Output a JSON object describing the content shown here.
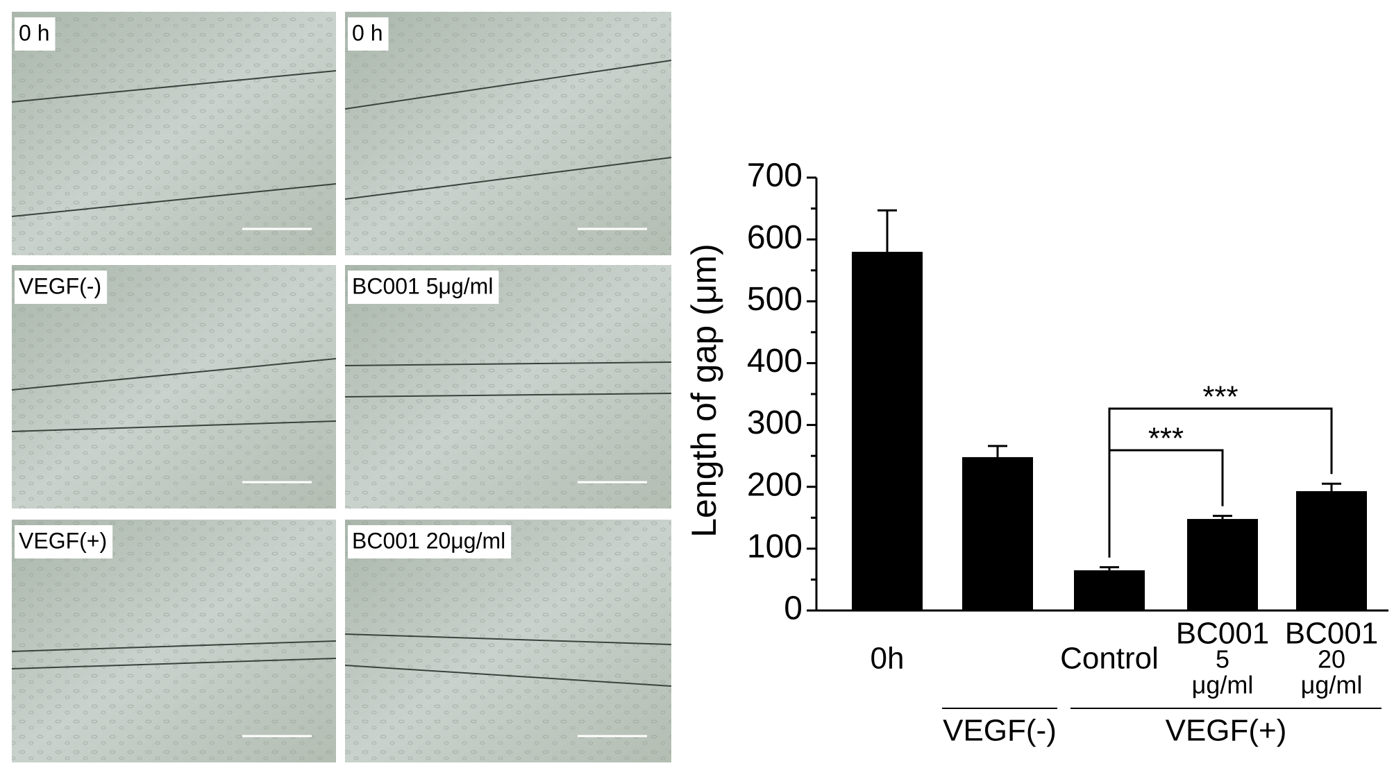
{
  "panels": [
    {
      "label": "0 h"
    },
    {
      "label": "0 h"
    },
    {
      "label": "VEGF(-)"
    },
    {
      "label": "BC001 5μg/ml"
    },
    {
      "label": "VEGF(+)"
    },
    {
      "label": "BC001 20μg/ml"
    }
  ],
  "chart_data": {
    "type": "bar",
    "y_label": "Length of gap (μm)",
    "categories": [
      [
        "0h"
      ],
      null,
      [
        "Control"
      ],
      [
        "BC001",
        "5",
        "μg/ml"
      ],
      [
        "BC001",
        "20",
        "μg/ml"
      ]
    ],
    "values": [
      580,
      248,
      65,
      148,
      193
    ],
    "errors": [
      67,
      18,
      5,
      5,
      12
    ],
    "color": "#000000",
    "ylim": [
      0,
      700
    ],
    "yticks": [
      0,
      100,
      200,
      300,
      400,
      500,
      600,
      700
    ],
    "minor_yticks": [
      50,
      150,
      250,
      350,
      450,
      550,
      650
    ],
    "groups": [
      {
        "label": "VEGF(-)",
        "from": 1,
        "to": 1
      },
      {
        "label": "VEGF(+)",
        "from": 2,
        "to": 4
      }
    ],
    "annotations": [
      {
        "text": "***",
        "from": 2,
        "to": 3
      },
      {
        "text": "***",
        "from": 2,
        "to": 4
      }
    ]
  }
}
